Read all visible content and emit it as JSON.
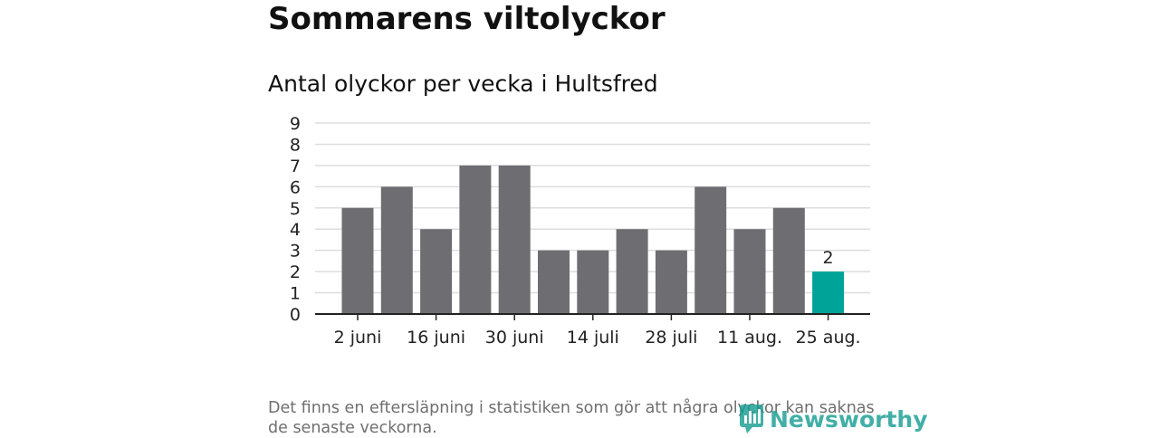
{
  "title": "Sommarens viltolyckor",
  "subtitle": "Antal olyckor per vecka i Hultsfred",
  "note": "Det finns en eftersläpning i statistiken som gör att några olyckor kan saknas de senaste veckorna.",
  "logo_text": "Newsworthy",
  "colors": {
    "bar": "#6e6d72",
    "highlight": "#00a398",
    "grid": "#dddddd",
    "axis": "#222222",
    "brand": "#149c91"
  },
  "chart_data": {
    "type": "bar",
    "title": "Antal olyckor per vecka i Hultsfred",
    "xlabel": "",
    "ylabel": "",
    "categories": [
      "2 juni",
      "9 juni",
      "16 juni",
      "23 juni",
      "30 juni",
      "7 juli",
      "14 juli",
      "21 juli",
      "28 juli",
      "4 aug.",
      "11 aug.",
      "18 aug.",
      "25 aug."
    ],
    "x_tick_labels": [
      "2 juni",
      "16 juni",
      "30 juni",
      "14 juli",
      "28 juli",
      "11 aug.",
      "25 aug."
    ],
    "values": [
      5,
      6,
      4,
      7,
      7,
      3,
      3,
      4,
      3,
      6,
      4,
      5,
      2
    ],
    "y_ticks": [
      0,
      1,
      2,
      3,
      4,
      5,
      6,
      7,
      8,
      9
    ],
    "ylim": [
      0,
      9
    ],
    "grid": true,
    "highlighted_category": "25 aug.",
    "data_labels": [
      {
        "category": "25 aug.",
        "text": "2"
      }
    ]
  }
}
